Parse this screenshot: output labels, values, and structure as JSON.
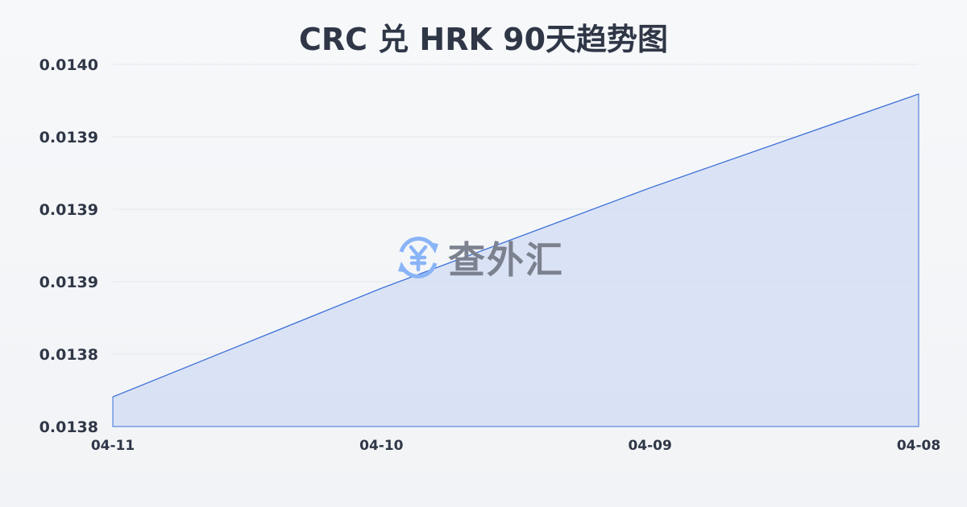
{
  "chart_data": {
    "type": "area",
    "title": "CRC 兑 HRK 90天趋势图",
    "xlabel": "",
    "ylabel": "",
    "categories": [
      "04-11",
      "04-10",
      "04-09",
      "04-08"
    ],
    "series": [
      {
        "values": [
          0.013798,
          0.013864,
          0.013925,
          0.013982
        ]
      }
    ],
    "ylim": [
      0.01378,
      0.014
    ],
    "y_tick_labels": [
      "0.0140",
      "0.0139",
      "0.0139",
      "0.0139",
      "0.0138",
      "0.0138"
    ],
    "grid": true,
    "colors": {
      "line": "#3a6fd8",
      "fill": "#d5def5",
      "grid": "#e3e6eb",
      "text": "#2f3747"
    }
  },
  "watermark": {
    "text": "查外汇",
    "icon": "yen-exchange-icon",
    "icon_color": "#8ab4f8"
  }
}
